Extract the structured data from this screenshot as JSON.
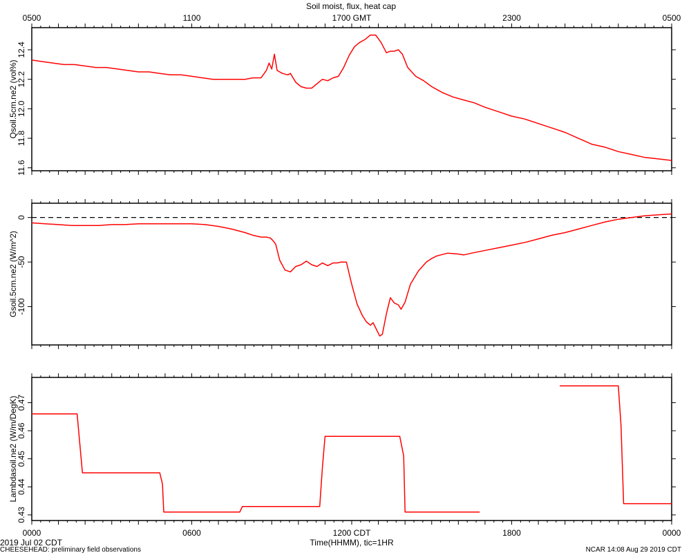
{
  "title": "Soil moist, flux, heat cap",
  "top_axis_ticks": [
    "0500",
    "1100",
    "1700 GMT",
    "2300",
    "0500"
  ],
  "bottom_axis_ticks": [
    "0000",
    "0600",
    "1200 CDT",
    "1800",
    "0000"
  ],
  "xlabel": "Time(HHMM), tic=1HR",
  "footer": {
    "date": "2019 Jul 02 CDT",
    "project": "CHEESEHEAD: preliminary field observations",
    "generated": "NCAR 14:08 Aug 29 2019 CDT"
  },
  "colors": {
    "series": "#ff0000",
    "axes": "#000000",
    "zero_line": "#000000"
  },
  "chart_data": [
    {
      "type": "line",
      "ylabel": "Qsoil.5cm.ne2 (vol%)",
      "ylim": [
        11.58,
        12.55
      ],
      "yticks": [
        11.6,
        11.8,
        12.0,
        12.2,
        12.4
      ],
      "ytick_labels": [
        "11.6",
        "11.8",
        "12.0",
        "12.2",
        "12.4"
      ],
      "xlim": [
        0,
        24
      ],
      "series": [
        {
          "x": [
            0,
            0.4,
            0.8,
            1.2,
            1.6,
            2.0,
            2.4,
            2.8,
            3.2,
            3.6,
            4.0,
            4.4,
            4.8,
            5.2,
            5.6,
            6.0,
            6.4,
            6.8,
            7.2,
            7.6,
            8.0,
            8.3,
            8.6,
            8.8,
            8.9,
            9.0,
            9.1,
            9.2,
            9.4,
            9.6,
            9.7,
            9.9,
            10.1,
            10.3,
            10.5,
            10.7,
            10.9,
            11.1,
            11.3,
            11.5,
            11.7,
            11.9,
            12.1,
            12.3,
            12.5,
            12.7,
            12.9,
            13.1,
            13.3,
            13.45,
            13.6,
            13.75,
            13.9,
            14.1,
            14.4,
            14.7,
            15.0,
            15.4,
            15.8,
            16.2,
            16.6,
            17.0,
            17.5,
            18.0,
            18.5,
            19.0,
            19.5,
            20.0,
            20.5,
            21.0,
            21.5,
            22.0,
            22.5,
            23.0,
            23.5,
            24.0
          ],
          "y": [
            12.33,
            12.32,
            12.31,
            12.3,
            12.3,
            12.29,
            12.28,
            12.28,
            12.27,
            12.26,
            12.25,
            12.25,
            12.24,
            12.23,
            12.23,
            12.22,
            12.21,
            12.2,
            12.2,
            12.2,
            12.2,
            12.21,
            12.21,
            12.26,
            12.31,
            12.27,
            12.37,
            12.26,
            12.24,
            12.23,
            12.24,
            12.18,
            12.15,
            12.14,
            12.14,
            12.17,
            12.2,
            12.19,
            12.21,
            12.22,
            12.28,
            12.36,
            12.42,
            12.45,
            12.47,
            12.5,
            12.5,
            12.45,
            12.38,
            12.39,
            12.39,
            12.4,
            12.37,
            12.28,
            12.22,
            12.19,
            12.15,
            12.11,
            12.08,
            12.06,
            12.04,
            12.01,
            11.98,
            11.95,
            11.93,
            11.9,
            11.87,
            11.84,
            11.8,
            11.76,
            11.74,
            11.71,
            11.69,
            11.67,
            11.66,
            11.65
          ]
        }
      ]
    },
    {
      "type": "line",
      "ylabel": "Gsoil.5cm.ne2 (W/m^2)",
      "ylim": [
        -143,
        16
      ],
      "yticks": [
        -100,
        -50,
        0
      ],
      "ytick_labels": [
        "-100",
        "-50",
        "0"
      ],
      "xlim": [
        0,
        24
      ],
      "zero_line": true,
      "series": [
        {
          "x": [
            0,
            0.5,
            1.0,
            1.5,
            2.0,
            2.5,
            3.0,
            3.5,
            4.0,
            4.5,
            5.0,
            5.5,
            6.0,
            6.5,
            7.0,
            7.5,
            8.0,
            8.3,
            8.6,
            8.8,
            8.95,
            9.05,
            9.15,
            9.3,
            9.5,
            9.7,
            9.9,
            10.1,
            10.3,
            10.5,
            10.7,
            10.9,
            11.1,
            11.3,
            11.45,
            11.6,
            11.8,
            12.0,
            12.2,
            12.4,
            12.55,
            12.7,
            12.8,
            12.95,
            13.05,
            13.15,
            13.3,
            13.45,
            13.6,
            13.75,
            13.85,
            14.0,
            14.2,
            14.5,
            14.8,
            15.0,
            15.2,
            15.6,
            16.0,
            16.2,
            16.5,
            17.0,
            17.5,
            18.0,
            18.5,
            19.0,
            19.5,
            20.0,
            20.5,
            21.0,
            21.5,
            22.0,
            22.5,
            23.0,
            23.5,
            24.0
          ],
          "y": [
            -6,
            -7,
            -8,
            -9,
            -9,
            -9,
            -8,
            -8,
            -7,
            -7,
            -7,
            -7,
            -7,
            -8,
            -10,
            -13,
            -17,
            -20,
            -22,
            -22,
            -23,
            -26,
            -30,
            -48,
            -59,
            -61,
            -55,
            -53,
            -49,
            -53,
            -55,
            -51,
            -54,
            -51,
            -51,
            -50,
            -50,
            -75,
            -97,
            -110,
            -117,
            -121,
            -118,
            -127,
            -133,
            -131,
            -108,
            -90,
            -96,
            -98,
            -103,
            -95,
            -75,
            -60,
            -50,
            -46,
            -43,
            -40,
            -41,
            -42,
            -40,
            -37,
            -34,
            -31,
            -28,
            -24,
            -20,
            -17,
            -13,
            -9,
            -5,
            -2,
            0,
            2,
            3,
            4
          ]
        }
      ]
    },
    {
      "type": "line",
      "ylabel": "Lambdasoil.ne2 (W/m/DegK)",
      "ylim": [
        0.428,
        0.479
      ],
      "yticks": [
        0.43,
        0.44,
        0.45,
        0.46,
        0.47
      ],
      "ytick_labels": [
        "0.43",
        "0.44",
        "0.45",
        "0.46",
        "0.47"
      ],
      "xlim": [
        0,
        24
      ],
      "series": [
        {
          "x": [
            0,
            1.7,
            1.9,
            4.8,
            4.9,
            4.95,
            7.8,
            7.9,
            10.8,
            10.9,
            11.0,
            13.8,
            13.95,
            14.0,
            16.8
          ],
          "y": [
            0.466,
            0.466,
            0.445,
            0.445,
            0.441,
            0.431,
            0.431,
            0.433,
            0.433,
            0.447,
            0.458,
            0.458,
            0.451,
            0.431,
            0.431
          ]
        },
        {
          "x": [
            19.8,
            22.0,
            22.1,
            22.2,
            24.0
          ],
          "y": [
            0.476,
            0.476,
            0.462,
            0.434,
            0.434
          ]
        }
      ]
    }
  ]
}
